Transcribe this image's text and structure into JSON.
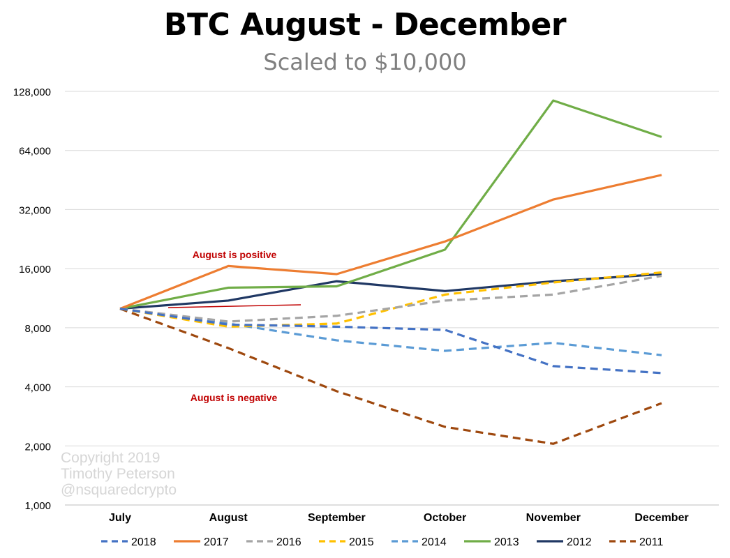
{
  "title": "BTC August - December",
  "subtitle": "Scaled to $10,000",
  "watermark": [
    "Copyright 2019",
    "Timothy Peterson",
    "@nsquaredcrypto"
  ],
  "annotations": {
    "positive": "August is positive",
    "negative": "August is negative",
    "color": "#c00000"
  },
  "chart_data": {
    "type": "line",
    "title": "BTC August - December",
    "subtitle": "Scaled to $10,000",
    "xlabel": "",
    "ylabel": "",
    "yscale": "log2",
    "ylim": [
      1000,
      128000
    ],
    "yticks": [
      1000,
      2000,
      4000,
      8000,
      16000,
      32000,
      64000,
      128000
    ],
    "ytick_labels": [
      "1,000",
      "2,000",
      "4,000",
      "8,000",
      "16,000",
      "32,000",
      "64,000",
      "128,000"
    ],
    "grid": true,
    "legend": "bottom",
    "categories": [
      "July",
      "August",
      "September",
      "October",
      "November",
      "December"
    ],
    "series": [
      {
        "name": "2018",
        "color": "#4472c4",
        "dash": true,
        "values": [
          10000,
          8300,
          8100,
          7800,
          5100,
          4700
        ]
      },
      {
        "name": "2017",
        "color": "#ed7d31",
        "dash": false,
        "values": [
          10000,
          16500,
          15000,
          22000,
          36000,
          48000
        ]
      },
      {
        "name": "2016",
        "color": "#a5a5a5",
        "dash": true,
        "values": [
          10000,
          8600,
          9200,
          11000,
          11800,
          14700
        ]
      },
      {
        "name": "2015",
        "color": "#ffc000",
        "dash": true,
        "values": [
          10000,
          8100,
          8400,
          11800,
          13600,
          15300
        ]
      },
      {
        "name": "2014",
        "color": "#5b9bd5",
        "dash": true,
        "values": [
          10000,
          8400,
          6900,
          6100,
          6700,
          5800
        ]
      },
      {
        "name": "2013",
        "color": "#70ad47",
        "dash": false,
        "values": [
          10000,
          12800,
          13000,
          20000,
          115000,
          75000
        ]
      },
      {
        "name": "2012",
        "color": "#203864",
        "dash": false,
        "values": [
          10000,
          11000,
          13800,
          12300,
          13800,
          15000
        ]
      },
      {
        "name": "2011",
        "color": "#9e480e",
        "dash": true,
        "values": [
          10000,
          6300,
          3800,
          2500,
          2050,
          3300
        ]
      }
    ]
  }
}
